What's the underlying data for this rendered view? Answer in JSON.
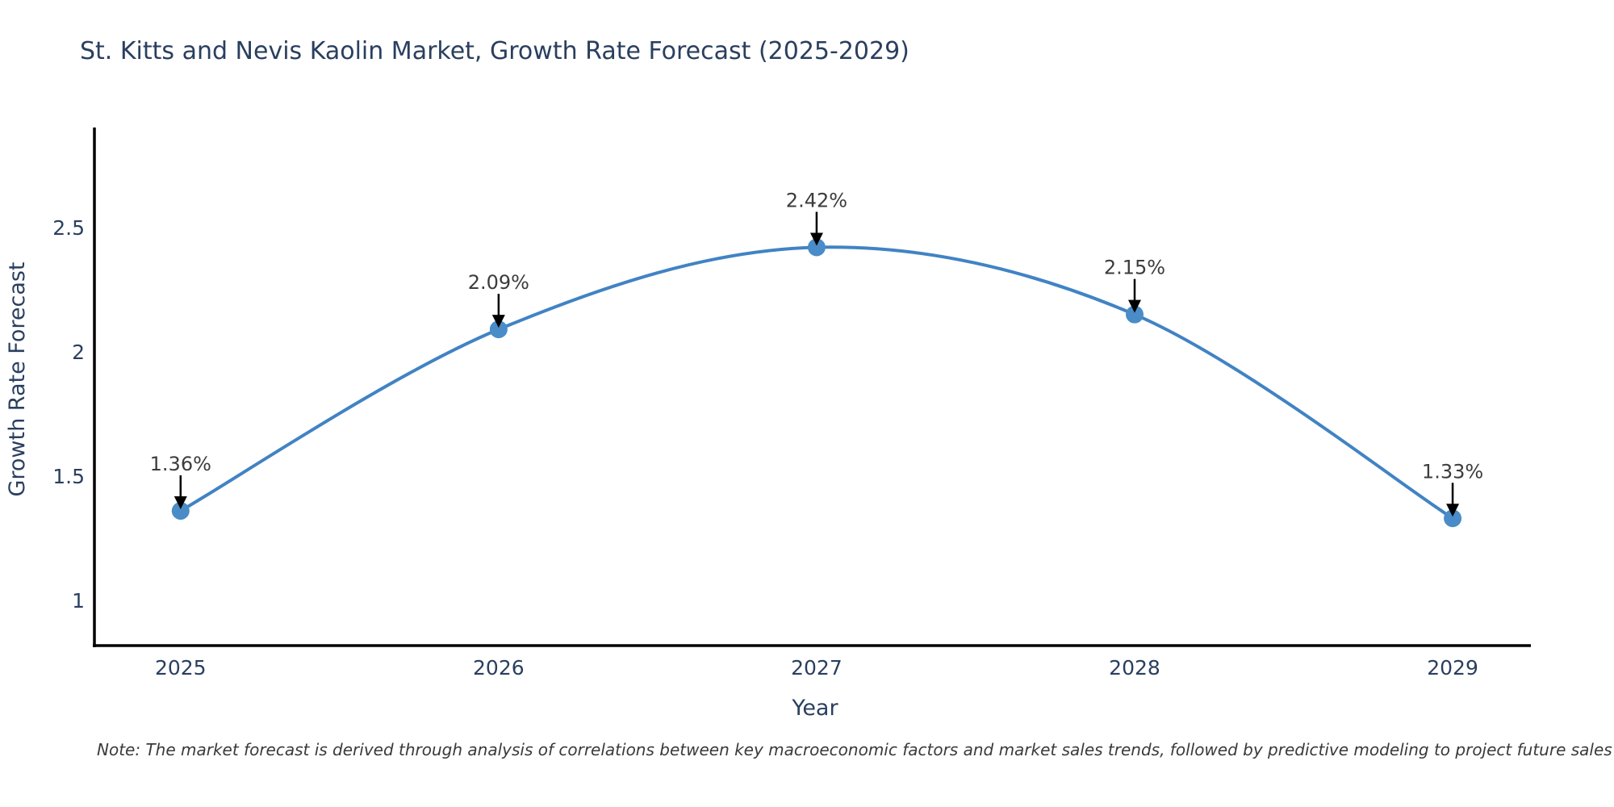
{
  "chart_data": {
    "type": "line",
    "title": "St. Kitts and Nevis Kaolin Market, Growth Rate Forecast (2025-2029)",
    "xlabel": "Year",
    "ylabel": "Growth Rate Forecast",
    "categories": [
      "2025",
      "2026",
      "2027",
      "2028",
      "2029"
    ],
    "values": [
      1.36,
      2.09,
      2.42,
      2.15,
      1.33
    ],
    "point_labels": [
      "1.36%",
      "2.09%",
      "2.42%",
      "2.15%",
      "1.33%"
    ],
    "yticks": [
      1,
      1.5,
      2,
      2.5
    ],
    "ylim": [
      0.818,
      2.902
    ],
    "x_pad": [
      0.271,
      0.246
    ],
    "grid": false,
    "legend": "none",
    "line_shape": "spline",
    "colors": {
      "line": "#4183c4",
      "marker": "#4a8cc7",
      "axis_line": "#000000",
      "tick_text": "#2a3f5f",
      "annotation_text": "#3c3c3c",
      "arrow": "#000000",
      "title_text": "#2a3f5f"
    }
  },
  "note": {
    "text": "Note: The market forecast is derived through analysis of correlations between key macroeconomic factors and market sales trends, followed by predictive modeling to project future sales"
  }
}
